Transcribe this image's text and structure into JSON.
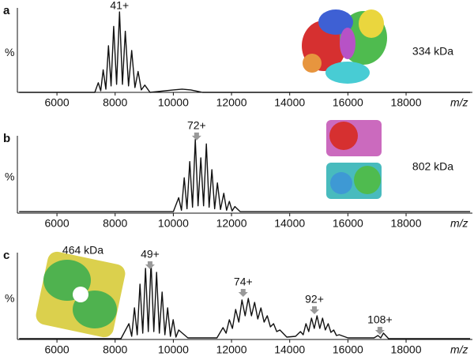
{
  "chart_data": [
    {
      "type": "line",
      "label": "a",
      "ylabel": "%",
      "xlabel": "m/z",
      "mass": "334 kDa",
      "arrows": false,
      "color": "#111111",
      "xlim": [
        4640,
        20280
      ],
      "ylim": [
        0,
        105
      ],
      "xticks": [
        6000,
        8000,
        10000,
        12000,
        14000,
        16000,
        18000
      ],
      "x": [
        4700,
        7300,
        7420,
        7505,
        7590,
        7680,
        7770,
        7860,
        7950,
        8050,
        8150,
        8250,
        8350,
        8460,
        8570,
        8680,
        8790,
        8900,
        9020,
        9200,
        10000,
        10300,
        10600,
        11000,
        20200
      ],
      "y": [
        0,
        0,
        12,
        2,
        28,
        4,
        58,
        8,
        82,
        10,
        100,
        10,
        76,
        8,
        52,
        6,
        26,
        3,
        9,
        0,
        3,
        4,
        3,
        0,
        0
      ],
      "annotations": [
        {
          "text": "41+",
          "x": 8150,
          "y": 107
        }
      ]
    },
    {
      "type": "line",
      "label": "b",
      "ylabel": "%",
      "xlabel": "m/z",
      "mass": "802 kDa",
      "arrows": true,
      "color": "#111111",
      "xlim": [
        4640,
        20280
      ],
      "ylim": [
        0,
        105
      ],
      "xticks": [
        6000,
        8000,
        10000,
        12000,
        14000,
        16000,
        18000
      ],
      "x": [
        4700,
        10000,
        10185,
        10280,
        10375,
        10470,
        10565,
        10660,
        10755,
        10850,
        10946,
        11040,
        11136,
        11230,
        11326,
        11420,
        11516,
        11620,
        11734,
        11830,
        11924,
        12020,
        12114,
        12300,
        20200
      ],
      "y": [
        2,
        2,
        21,
        4,
        48,
        6,
        70,
        8,
        100,
        10,
        75,
        10,
        94,
        8,
        59,
        6,
        41,
        5,
        27,
        4,
        16,
        3,
        9,
        2,
        2
      ],
      "annotations": [
        {
          "text": "72+",
          "x": 10800,
          "y": 118
        }
      ]
    },
    {
      "type": "line",
      "label": "c",
      "ylabel": "%",
      "xlabel": "m/z",
      "mass": "464 kDa",
      "arrows": true,
      "color": "#111111",
      "xlim": [
        4640,
        20280
      ],
      "ylim": [
        0,
        110
      ],
      "xticks": [
        6000,
        8000,
        10000,
        12000,
        14000,
        16000,
        18000
      ],
      "x": [
        4700,
        8200,
        8473,
        8568,
        8663,
        8758,
        8853,
        8948,
        9043,
        9138,
        9234,
        9329,
        9424,
        9519,
        9614,
        9709,
        9804,
        9900,
        9995,
        10090,
        10185,
        10500,
        11500,
        11707,
        11815,
        11924,
        12032,
        12141,
        12250,
        12359,
        12468,
        12576,
        12685,
        12793,
        12902,
        13011,
        13120,
        13228,
        13337,
        13446,
        13555,
        13663,
        13900,
        14200,
        14370,
        14465,
        14560,
        14655,
        14750,
        14845,
        14940,
        15035,
        15130,
        15225,
        15321,
        15416,
        15511,
        15606,
        15701,
        16000,
        16900,
        17033,
        17128,
        17223,
        17400,
        20200
      ],
      "y": [
        1,
        1,
        20,
        4,
        40,
        6,
        70,
        8,
        90,
        10,
        98,
        10,
        85,
        8,
        60,
        6,
        40,
        4,
        25,
        3,
        12,
        2,
        2,
        15,
        8,
        25,
        14,
        38,
        22,
        50,
        30,
        52,
        30,
        47,
        26,
        40,
        22,
        30,
        16,
        20,
        10,
        12,
        3,
        4,
        10,
        6,
        20,
        10,
        27,
        14,
        30,
        14,
        27,
        12,
        20,
        9,
        12,
        5,
        6,
        2,
        2,
        5,
        2,
        8,
        1,
        1
      ],
      "annotations": [
        {
          "text": "49+",
          "x": 9200,
          "y": 107
        },
        {
          "text": "74+",
          "x": 12400,
          "y": 72
        },
        {
          "text": "92+",
          "x": 14850,
          "y": 50
        },
        {
          "text": "108+",
          "x": 17100,
          "y": 24
        }
      ]
    }
  ]
}
